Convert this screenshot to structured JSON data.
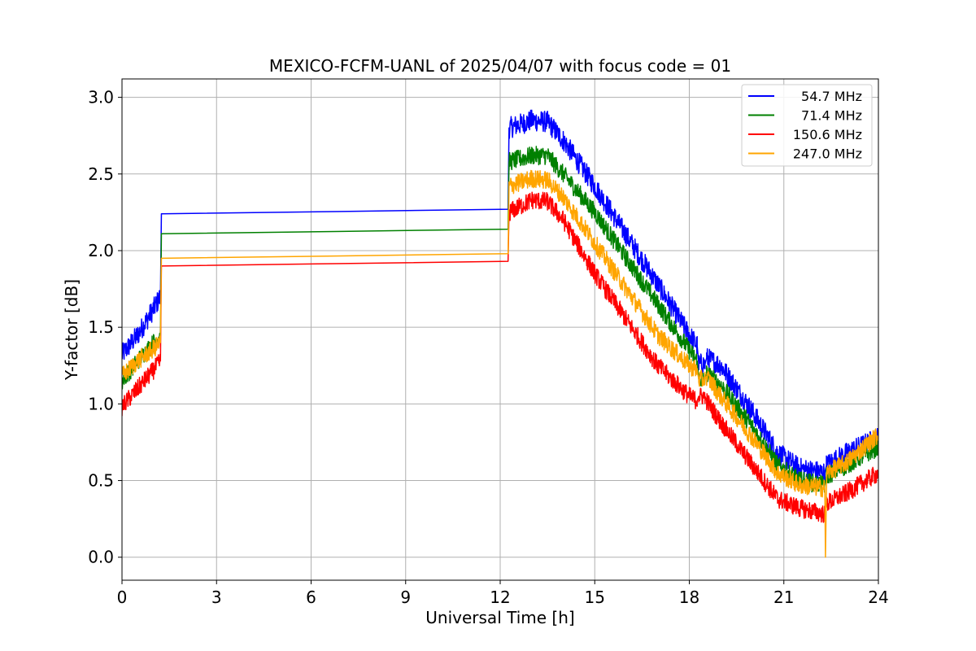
{
  "chart_data": {
    "type": "line",
    "title": "MEXICO-FCFM-UANL of 2025/04/07 with focus code = 01",
    "xlabel": "Universal Time [h]",
    "ylabel": "Y-factor [dB]",
    "xlim": [
      0,
      24
    ],
    "ylim": [
      -0.15,
      3.12
    ],
    "xticks": [
      0,
      3,
      6,
      9,
      12,
      15,
      18,
      21,
      24
    ],
    "xtick_labels": [
      "0",
      "3",
      "6",
      "9",
      "12",
      "15",
      "18",
      "21",
      "24"
    ],
    "yticks": [
      0.0,
      0.5,
      1.0,
      1.5,
      2.0,
      2.5,
      3.0
    ],
    "ytick_labels": [
      "0.0",
      "0.5",
      "1.0",
      "1.5",
      "2.0",
      "2.5",
      "3.0"
    ],
    "grid": true,
    "legend_position": "top-right",
    "series": [
      {
        "name": " 54.7 MHz",
        "color": "#0000ff",
        "noise": 0.07,
        "points": [
          [
            0,
            1.32
          ],
          [
            0.5,
            1.45
          ],
          [
            1.0,
            1.62
          ],
          [
            1.22,
            1.7
          ],
          [
            1.25,
            2.24
          ],
          [
            12.25,
            2.27
          ],
          [
            12.28,
            2.8
          ],
          [
            13.0,
            2.85
          ],
          [
            13.5,
            2.84
          ],
          [
            14.0,
            2.72
          ],
          [
            15.0,
            2.42
          ],
          [
            16.0,
            2.1
          ],
          [
            17.0,
            1.78
          ],
          [
            18.0,
            1.45
          ],
          [
            18.25,
            1.38
          ],
          [
            18.3,
            1.26
          ],
          [
            18.5,
            1.26
          ],
          [
            18.55,
            1.3
          ],
          [
            19.0,
            1.25
          ],
          [
            20.0,
            0.95
          ],
          [
            20.8,
            0.68
          ],
          [
            21.5,
            0.58
          ],
          [
            22.3,
            0.55
          ],
          [
            22.35,
            0.6
          ],
          [
            23.0,
            0.68
          ],
          [
            24.0,
            0.78
          ]
        ]
      },
      {
        "name": " 71.4 MHz",
        "color": "#008000",
        "noise": 0.06,
        "points": [
          [
            0,
            1.15
          ],
          [
            0.5,
            1.28
          ],
          [
            1.0,
            1.4
          ],
          [
            1.22,
            1.45
          ],
          [
            1.25,
            2.11
          ],
          [
            12.25,
            2.14
          ],
          [
            12.28,
            2.58
          ],
          [
            13.0,
            2.62
          ],
          [
            13.5,
            2.62
          ],
          [
            14.0,
            2.5
          ],
          [
            15.0,
            2.25
          ],
          [
            16.0,
            1.95
          ],
          [
            17.0,
            1.65
          ],
          [
            18.0,
            1.35
          ],
          [
            18.25,
            1.28
          ],
          [
            18.3,
            1.16
          ],
          [
            18.5,
            1.16
          ],
          [
            18.55,
            1.2
          ],
          [
            19.0,
            1.12
          ],
          [
            20.0,
            0.85
          ],
          [
            20.8,
            0.6
          ],
          [
            21.5,
            0.5
          ],
          [
            22.3,
            0.47
          ],
          [
            22.35,
            0.53
          ],
          [
            23.0,
            0.6
          ],
          [
            24.0,
            0.72
          ]
        ]
      },
      {
        "name": " 150.6 MHz",
        "color": "#ff0000",
        "noise": 0.06,
        "points": [
          [
            0,
            0.98
          ],
          [
            0.5,
            1.1
          ],
          [
            1.0,
            1.22
          ],
          [
            1.22,
            1.28
          ],
          [
            1.25,
            1.9
          ],
          [
            12.25,
            1.93
          ],
          [
            12.28,
            2.25
          ],
          [
            13.0,
            2.33
          ],
          [
            13.5,
            2.32
          ],
          [
            14.0,
            2.2
          ],
          [
            15.0,
            1.85
          ],
          [
            16.0,
            1.55
          ],
          [
            17.0,
            1.25
          ],
          [
            18.0,
            1.05
          ],
          [
            18.25,
            1.02
          ],
          [
            18.3,
            1.05
          ],
          [
            18.5,
            1.05
          ],
          [
            18.55,
            1.02
          ],
          [
            19.0,
            0.88
          ],
          [
            20.0,
            0.6
          ],
          [
            20.8,
            0.38
          ],
          [
            21.5,
            0.32
          ],
          [
            22.3,
            0.28
          ],
          [
            22.35,
            0.35
          ],
          [
            23.0,
            0.42
          ],
          [
            24.0,
            0.55
          ]
        ]
      },
      {
        "name": " 247.0 MHz",
        "color": "#ffa500",
        "noise": 0.06,
        "points": [
          [
            0,
            1.18
          ],
          [
            0.5,
            1.28
          ],
          [
            1.0,
            1.36
          ],
          [
            1.22,
            1.4
          ],
          [
            1.25,
            1.95
          ],
          [
            12.25,
            1.98
          ],
          [
            12.28,
            2.42
          ],
          [
            13.0,
            2.47
          ],
          [
            13.5,
            2.46
          ],
          [
            14.0,
            2.35
          ],
          [
            15.0,
            2.05
          ],
          [
            16.0,
            1.75
          ],
          [
            17.0,
            1.45
          ],
          [
            18.0,
            1.25
          ],
          [
            18.25,
            1.22
          ],
          [
            18.3,
            1.16
          ],
          [
            18.5,
            1.16
          ],
          [
            18.55,
            1.18
          ],
          [
            19.0,
            1.05
          ],
          [
            20.0,
            0.78
          ],
          [
            20.8,
            0.55
          ],
          [
            21.5,
            0.47
          ],
          [
            22.3,
            0.45
          ],
          [
            22.32,
            0.0
          ],
          [
            22.36,
            0.55
          ],
          [
            23.0,
            0.62
          ],
          [
            24.0,
            0.8
          ]
        ]
      }
    ]
  }
}
